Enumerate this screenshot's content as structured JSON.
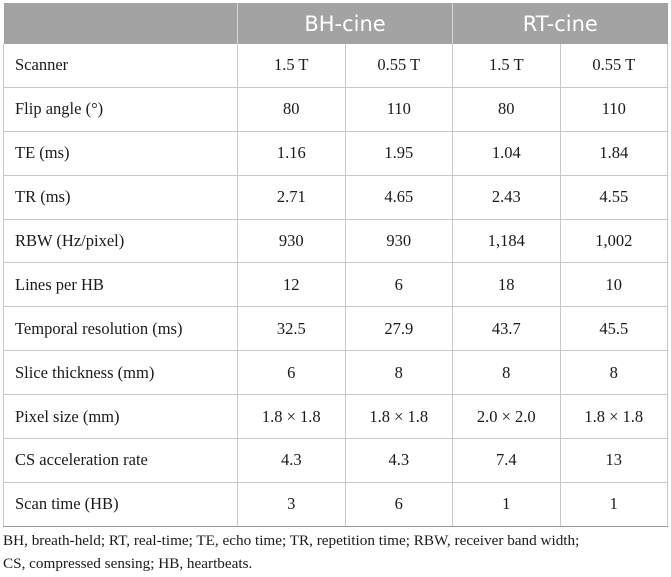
{
  "table": {
    "headers": {
      "corner": "",
      "group1": "BH-cine",
      "group2": "RT-cine"
    },
    "rows": [
      {
        "label": "Scanner",
        "values": [
          "1.5 T",
          "0.55 T",
          "1.5 T",
          "0.55 T"
        ]
      },
      {
        "label": "Flip angle (°)",
        "values": [
          "80",
          "110",
          "80",
          "110"
        ]
      },
      {
        "label": "TE (ms)",
        "values": [
          "1.16",
          "1.95",
          "1.04",
          "1.84"
        ]
      },
      {
        "label": "TR (ms)",
        "values": [
          "2.71",
          "4.65",
          "2.43",
          "4.55"
        ]
      },
      {
        "label": "RBW (Hz/pixel)",
        "values": [
          "930",
          "930",
          "1,184",
          "1,002"
        ]
      },
      {
        "label": "Lines per HB",
        "values": [
          "12",
          "6",
          "18",
          "10"
        ]
      },
      {
        "label": "Temporal resolution (ms)",
        "values": [
          "32.5",
          "27.9",
          "43.7",
          "45.5"
        ]
      },
      {
        "label": "Slice thickness (mm)",
        "values": [
          "6",
          "8",
          "8",
          "8"
        ]
      },
      {
        "label": "Pixel size (mm)",
        "values": [
          "1.8 × 1.8",
          "1.8 × 1.8",
          "2.0 × 2.0",
          "1.8 × 1.8"
        ]
      },
      {
        "label": "CS acceleration rate",
        "values": [
          "4.3",
          "4.3",
          "7.4",
          "13"
        ]
      },
      {
        "label": "Scan time (HB)",
        "values": [
          "3",
          "6",
          "1",
          "1"
        ]
      }
    ]
  },
  "footnote": {
    "line1": "BH, breath-held; RT, real-time; TE, echo time; TR, repetition time; RBW, receiver band width;",
    "line2": "CS, compressed sensing; HB, heartbeats."
  }
}
